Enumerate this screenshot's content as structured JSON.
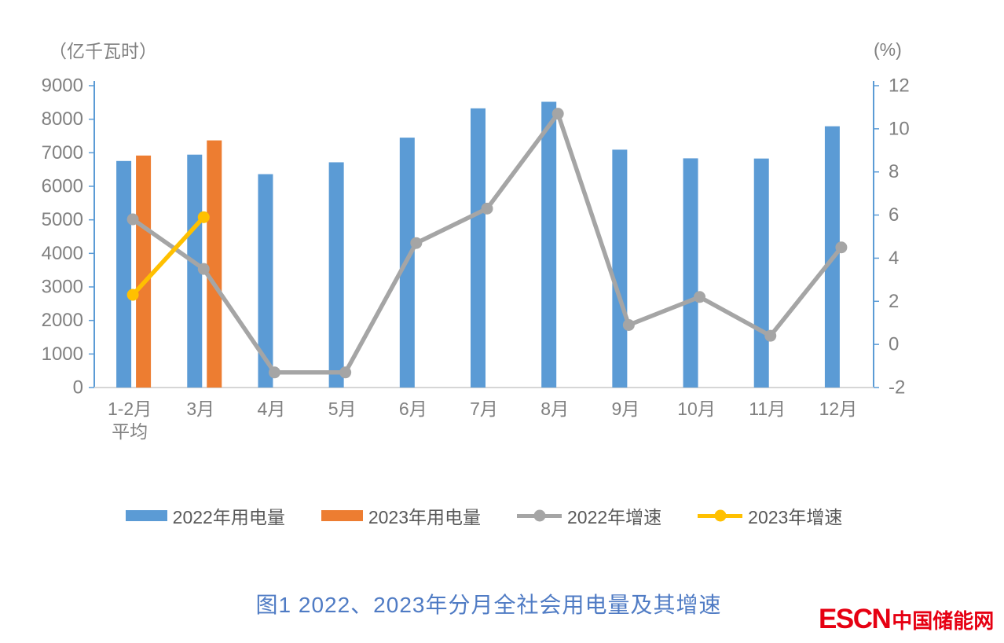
{
  "chart_data": {
    "type": "combo-bar-line",
    "categories": [
      "1-2月\n平均",
      "3月",
      "4月",
      "5月",
      "6月",
      "7月",
      "8月",
      "9月",
      "10月",
      "11月",
      "12月"
    ],
    "left_axis": {
      "unit_label": "（亿千瓦时）",
      "min": 0,
      "max": 9000,
      "step": 1000,
      "tick_labels": [
        "0",
        "1000",
        "2000",
        "3000",
        "4000",
        "5000",
        "6000",
        "7000",
        "8000",
        "9000"
      ]
    },
    "right_axis": {
      "unit_label": "(%)",
      "min": -2,
      "max": 12,
      "step": 2,
      "tick_labels": [
        "-2",
        "0",
        "2",
        "4",
        "6",
        "8",
        "10",
        "12"
      ]
    },
    "grid": false,
    "legend_position": "bottom",
    "series": [
      {
        "name": "2022年用电量",
        "type": "bar",
        "axis": "left",
        "color": "#5B9BD5",
        "values": [
          6755,
          6944,
          6362,
          6716,
          7451,
          8324,
          8520,
          7092,
          6834,
          6828,
          7790
        ]
      },
      {
        "name": "2023年用电量",
        "type": "bar",
        "axis": "left",
        "color": "#ED7D31",
        "values": [
          6917,
          7369,
          null,
          null,
          null,
          null,
          null,
          null,
          null,
          null,
          null
        ]
      },
      {
        "name": "2022年增速",
        "type": "line",
        "axis": "right",
        "color": "#A5A5A5",
        "values": [
          5.8,
          3.5,
          -1.3,
          -1.3,
          4.7,
          6.3,
          10.7,
          0.9,
          2.2,
          0.4,
          4.5
        ]
      },
      {
        "name": "2023年增速",
        "type": "line",
        "axis": "right",
        "color": "#FFC000",
        "values": [
          2.3,
          5.9,
          null,
          null,
          null,
          null,
          null,
          null,
          null,
          null,
          null
        ]
      }
    ]
  },
  "legend": {
    "items": [
      {
        "label": "2022年用电量",
        "color": "#5B9BD5",
        "marker": "bar"
      },
      {
        "label": "2023年用电量",
        "color": "#ED7D31",
        "marker": "bar"
      },
      {
        "label": "2022年增速",
        "color": "#A5A5A5",
        "marker": "line-dot"
      },
      {
        "label": "2023年增速",
        "color": "#FFC000",
        "marker": "line-dot"
      }
    ]
  },
  "caption": {
    "text": "图1  2022、2023年分月全社会用电量及其增速",
    "color": "#4F7BC4"
  },
  "branding": {
    "logo_en": "ESCN",
    "logo_cn": "中国储能网",
    "color": "#E60012"
  },
  "style": {
    "axis_line_color": "#5B9BD5",
    "baseline_color": "#D6D6D6",
    "tick_text_color": "#808080",
    "legend_text_color": "#595959"
  }
}
